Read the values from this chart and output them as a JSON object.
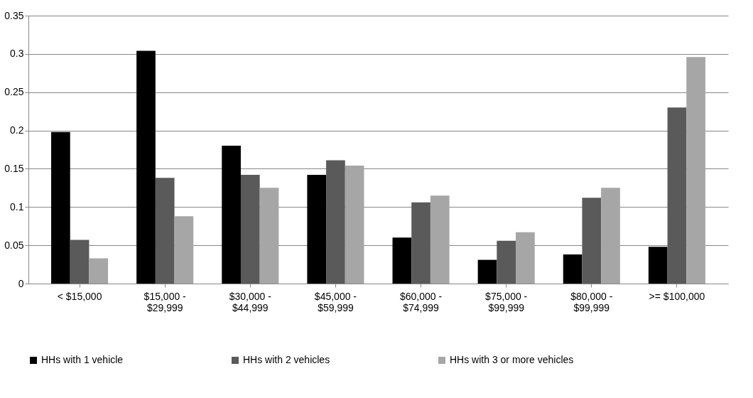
{
  "chart_data": {
    "type": "bar",
    "categories": [
      "< $15,000",
      "$15,000 -\n$29,999",
      "$30,000 -\n$44,999",
      "$45,000 -\n$59,999",
      "$60,000 -\n$74,999",
      "$75,000 -\n$99,999",
      "$80,000 -\n$99,999",
      ">= $100,000"
    ],
    "series": [
      {
        "name": "HHs with 1 vehicle",
        "color": "#000000",
        "values": [
          0.198,
          0.304,
          0.18,
          0.142,
          0.06,
          0.031,
          0.038,
          0.048
        ]
      },
      {
        "name": "HHs with 2 vehicles",
        "color": "#5a5a5a",
        "values": [
          0.057,
          0.138,
          0.142,
          0.161,
          0.106,
          0.056,
          0.112,
          0.23
        ]
      },
      {
        "name": "HHs with 3 or more vehicles",
        "color": "#a6a6a6",
        "values": [
          0.033,
          0.088,
          0.125,
          0.154,
          0.115,
          0.067,
          0.125,
          0.296
        ]
      }
    ],
    "ylim": [
      0,
      0.35
    ],
    "yticks": [
      0,
      0.05,
      0.1,
      0.15,
      0.2,
      0.25,
      0.3,
      0.35
    ],
    "grid": "y",
    "legend": "bottom"
  }
}
